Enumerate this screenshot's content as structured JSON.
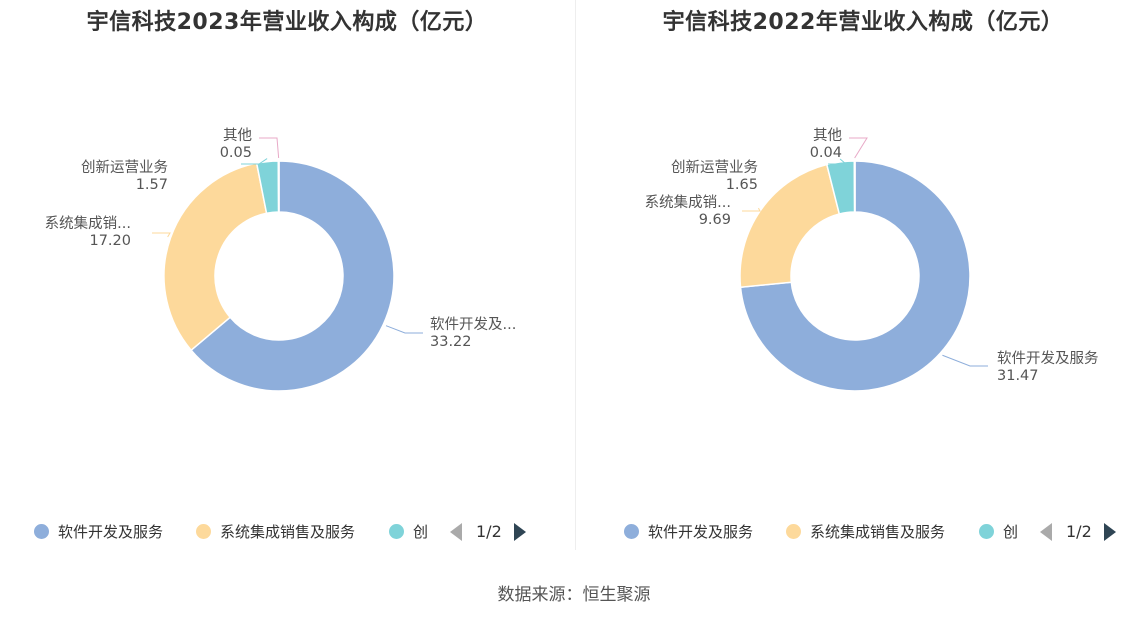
{
  "colors": {
    "series": [
      "#8eaedb",
      "#fdd99b",
      "#7fd3d9",
      "#e8a9c7"
    ]
  },
  "source": "数据来源：恒生聚源",
  "chart_data": [
    {
      "type": "pie",
      "donut": true,
      "title": "宇信科技2023年营业收入构成（亿元）",
      "slices": [
        {
          "name": "软件开发及服务",
          "label": "软件开发及...",
          "value": 33.22,
          "value_text": "33.22"
        },
        {
          "name": "系统集成销售及服务",
          "label": "系统集成销...",
          "value": 17.2,
          "value_text": "17.20"
        },
        {
          "name": "创新运营业务",
          "label": "创新运营业务",
          "value": 1.57,
          "value_text": "1.57"
        },
        {
          "name": "其他",
          "label": "其他",
          "value": 0.05,
          "value_text": "0.05"
        }
      ],
      "legend": {
        "items": [
          "软件开发及服务",
          "系统集成销售及服务",
          "创"
        ],
        "page": "1/2",
        "position": "bottom"
      }
    },
    {
      "type": "pie",
      "donut": true,
      "title": "宇信科技2022年营业收入构成（亿元）",
      "slices": [
        {
          "name": "软件开发及服务",
          "label": "软件开发及服务",
          "value": 31.47,
          "value_text": "31.47"
        },
        {
          "name": "系统集成销售及服务",
          "label": "系统集成销...",
          "value": 9.69,
          "value_text": "9.69"
        },
        {
          "name": "创新运营业务",
          "label": "创新运营业务",
          "value": 1.65,
          "value_text": "1.65"
        },
        {
          "name": "其他",
          "label": "其他",
          "value": 0.04,
          "value_text": "0.04"
        }
      ],
      "legend": {
        "items": [
          "软件开发及服务",
          "系统集成销售及服务",
          "创"
        ],
        "page": "1/2",
        "position": "bottom"
      }
    }
  ]
}
